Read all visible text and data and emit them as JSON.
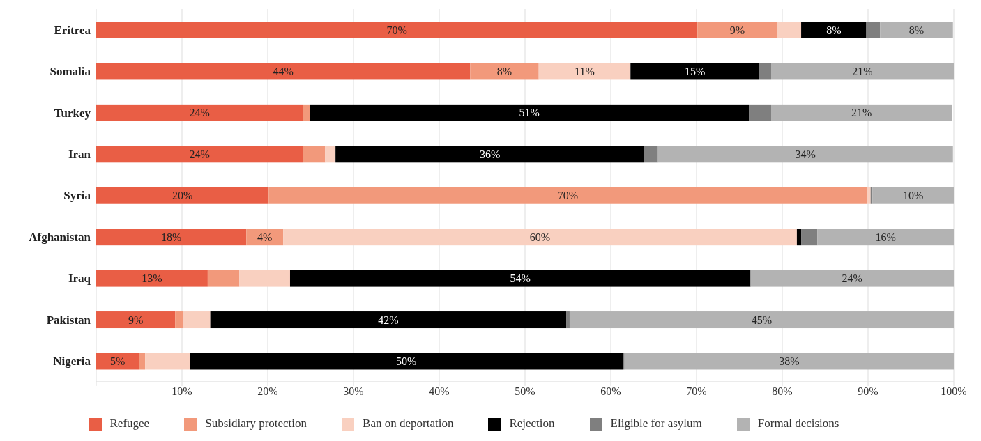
{
  "chart_data": {
    "type": "bar",
    "orientation": "horizontal",
    "stacked": true,
    "categories": [
      "Eritrea",
      "Somalia",
      "Turkey",
      "Iran",
      "Syria",
      "Afghanistan",
      "Iraq",
      "Pakistan",
      "Nigeria"
    ],
    "series": [
      {
        "name": "Refugee",
        "color": "#e95e45",
        "values": [
          70.1,
          43.6,
          24.1,
          24.1,
          20.1,
          17.5,
          13.0,
          9.2,
          5.0
        ],
        "value_labels": [
          "70%",
          "44%",
          "24%",
          "24%",
          "20%",
          "18%",
          "13%",
          "9%",
          "5%"
        ]
      },
      {
        "name": "Subsidiary protection",
        "color": "#f2997b",
        "values": [
          9.3,
          8.0,
          0.8,
          2.6,
          69.8,
          4.3,
          3.7,
          1.0,
          0.7
        ],
        "value_labels": [
          "9%",
          "8%",
          null,
          null,
          "70%",
          "4%",
          null,
          null,
          null
        ]
      },
      {
        "name": "Ban on deportation",
        "color": "#f9d0c0",
        "values": [
          2.8,
          10.7,
          null,
          1.2,
          0.4,
          59.9,
          5.9,
          3.1,
          5.2
        ],
        "value_labels": [
          null,
          "11%",
          null,
          null,
          null,
          "60%",
          null,
          null,
          null
        ]
      },
      {
        "name": "Rejection",
        "color": "#000000",
        "values": [
          7.6,
          15.0,
          51.2,
          36.0,
          0,
          0.5,
          53.7,
          41.5,
          50.5
        ],
        "value_labels": [
          "8%",
          "15%",
          "51%",
          "36%",
          null,
          null,
          "54%",
          "42%",
          "50%"
        ]
      },
      {
        "name": "Eligible for asylum",
        "color": "#7f7f7f",
        "values": [
          1.6,
          1.4,
          2.6,
          1.6,
          0.2,
          1.9,
          0,
          0.4,
          0.2
        ],
        "value_labels": [
          null,
          null,
          null,
          null,
          null,
          null,
          null,
          null,
          null
        ]
      },
      {
        "name": "Formal decisions",
        "color": "#b3b3b3",
        "values": [
          8.5,
          21.4,
          21.1,
          34.4,
          9.6,
          15.9,
          23.7,
          44.8,
          38.4
        ],
        "value_labels": [
          "8%",
          "21%",
          "21%",
          "34%",
          "10%",
          "16%",
          "24%",
          "45%",
          "38%"
        ]
      }
    ],
    "xlim": [
      0,
      100
    ],
    "xticks": [
      {
        "value": 0,
        "label": null
      },
      {
        "value": 10,
        "label": "10%"
      },
      {
        "value": 20,
        "label": "20%"
      },
      {
        "value": 30,
        "label": "30%"
      },
      {
        "value": 40,
        "label": "40%"
      },
      {
        "value": 50,
        "label": "50%"
      },
      {
        "value": 60,
        "label": "60%"
      },
      {
        "value": 70,
        "label": "70%"
      },
      {
        "value": 80,
        "label": "80%"
      },
      {
        "value": 90,
        "label": "90%"
      },
      {
        "value": 100,
        "label": "100%"
      }
    ],
    "grid": "x",
    "legend": "bottom"
  }
}
